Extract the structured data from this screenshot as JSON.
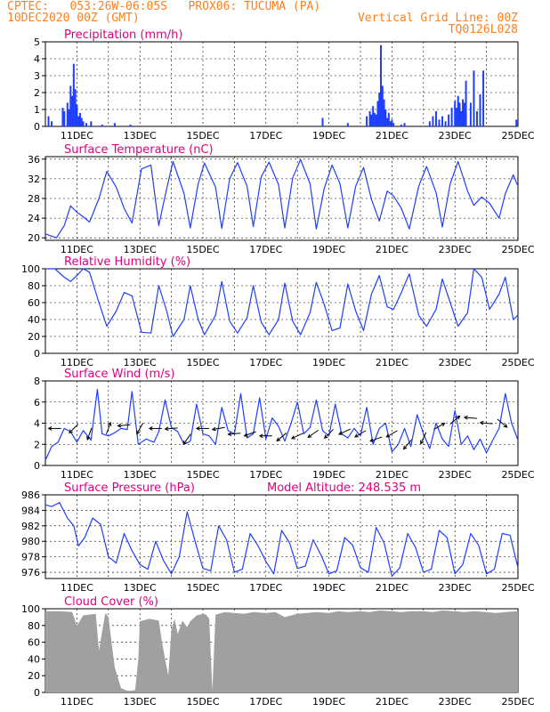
{
  "header": {
    "line1_left": "CPTEC:   053:26W-06:05S   PROX06: TUCUMA (PA)",
    "line2_left": "10DEC2020 00Z (GMT)",
    "line2_right": "Vertical Grid Line: 00Z",
    "line3_right": "TQ0126L028"
  },
  "colors": {
    "header": "#ff7f1f",
    "title": "#e0007f",
    "series": "#1f3fff",
    "cloud": "#a0a0a0"
  },
  "x_axis": {
    "start": "10DEC2020 00Z",
    "end": "25DEC2020 00Z",
    "tick_labels": [
      "11DEC",
      "13DEC",
      "15DEC",
      "17DEC",
      "19DEC",
      "21DEC",
      "23DEC",
      "25DEC"
    ],
    "tick_days": [
      1,
      3,
      5,
      7,
      9,
      11,
      13,
      15
    ]
  },
  "chart_data": [
    {
      "type": "bar",
      "id": "precip",
      "title": "Precipitation (mm/h)",
      "ylim": [
        0,
        5
      ],
      "yticks": [
        0,
        1,
        2,
        3,
        4,
        5
      ],
      "x_unit": "days since 10DEC2020 00Z",
      "x": [
        0.1,
        0.2,
        0.55,
        0.6,
        0.7,
        0.75,
        0.8,
        0.85,
        0.9,
        0.95,
        1.0,
        1.05,
        1.1,
        1.15,
        1.2,
        1.3,
        1.45,
        1.8,
        2.2,
        2.7,
        8.8,
        9.6,
        10.2,
        10.3,
        10.35,
        10.4,
        10.45,
        10.5,
        10.55,
        10.6,
        10.65,
        10.7,
        10.75,
        10.8,
        10.85,
        10.9,
        10.95,
        11.0,
        11.05,
        11.3,
        11.4,
        12.2,
        12.3,
        12.4,
        12.5,
        12.6,
        12.7,
        12.8,
        12.9,
        13.0,
        13.05,
        13.1,
        13.15,
        13.2,
        13.25,
        13.3,
        13.35,
        13.5,
        13.6,
        13.7,
        13.8,
        13.9,
        14.95
      ],
      "values": [
        0.6,
        0.3,
        1.1,
        0.9,
        1.4,
        1.0,
        2.4,
        1.8,
        3.7,
        2.2,
        1.3,
        0.6,
        0.8,
        0.5,
        0.3,
        0.2,
        0.3,
        0.1,
        0.2,
        0.1,
        0.5,
        0.2,
        0.6,
        0.9,
        0.7,
        1.2,
        0.8,
        0.7,
        1.5,
        2.0,
        4.8,
        2.4,
        1.6,
        1.0,
        0.5,
        0.8,
        0.3,
        0.4,
        0.2,
        0.1,
        0.2,
        0.3,
        0.6,
        0.9,
        0.4,
        0.6,
        0.3,
        0.7,
        1.1,
        1.5,
        1.1,
        1.8,
        1.4,
        0.9,
        1.6,
        1.4,
        2.7,
        1.4,
        3.3,
        0.9,
        1.9,
        3.3,
        0.4
      ]
    },
    {
      "type": "line",
      "id": "temp",
      "title": "Surface Temperature (nC)",
      "ylim": [
        19.5,
        36.5
      ],
      "yticks": [
        20,
        24,
        28,
        32,
        36
      ],
      "x_unit": "days since 10DEC2020 00Z",
      "x": [
        0,
        0.35,
        0.6,
        0.8,
        1.0,
        1.2,
        1.4,
        1.7,
        1.95,
        2.25,
        2.5,
        2.75,
        3.05,
        3.35,
        3.6,
        3.85,
        4.05,
        4.4,
        4.6,
        4.85,
        5.05,
        5.4,
        5.6,
        5.85,
        6.1,
        6.4,
        6.6,
        6.85,
        7.1,
        7.4,
        7.6,
        7.85,
        8.1,
        8.4,
        8.6,
        8.85,
        9.1,
        9.35,
        9.6,
        9.85,
        10.1,
        10.35,
        10.6,
        10.85,
        11.05,
        11.3,
        11.55,
        11.85,
        12.1,
        12.4,
        12.6,
        12.85,
        13.1,
        13.4,
        13.6,
        13.85,
        14.1,
        14.4,
        14.6,
        14.85,
        15.0
      ],
      "values": [
        20.8,
        20.0,
        22.5,
        26.5,
        25.2,
        24.3,
        23.2,
        28.0,
        33.5,
        30.3,
        26.0,
        23.0,
        34.0,
        34.8,
        22.5,
        30.0,
        35.5,
        29.0,
        22.0,
        31.0,
        35.2,
        30.3,
        21.9,
        32.0,
        35.3,
        30.5,
        22.3,
        32.4,
        35.4,
        30.8,
        22.0,
        32.2,
        35.9,
        31.0,
        21.8,
        30.0,
        34.8,
        31.0,
        22.0,
        30.5,
        34.3,
        27.8,
        23.4,
        29.5,
        28.5,
        26.0,
        21.8,
        30.5,
        34.5,
        29.2,
        22.2,
        31.0,
        35.5,
        29.5,
        26.6,
        28.3,
        27.0,
        24.0,
        29.0,
        32.8,
        30.5
      ]
    },
    {
      "type": "line",
      "id": "rh",
      "title": "Relative Humidity (%)",
      "ylim": [
        0,
        100
      ],
      "yticks": [
        0,
        20,
        40,
        60,
        80,
        100
      ],
      "x_unit": "days since 10DEC2020 00Z",
      "x": [
        0,
        0.3,
        0.6,
        0.8,
        1.0,
        1.2,
        1.4,
        1.7,
        1.95,
        2.25,
        2.5,
        2.75,
        3.05,
        3.35,
        3.6,
        3.85,
        4.05,
        4.4,
        4.6,
        4.85,
        5.05,
        5.4,
        5.6,
        5.85,
        6.1,
        6.4,
        6.6,
        6.85,
        7.1,
        7.4,
        7.6,
        7.85,
        8.1,
        8.4,
        8.6,
        8.85,
        9.1,
        9.35,
        9.6,
        9.85,
        10.1,
        10.35,
        10.6,
        10.85,
        11.05,
        11.3,
        11.55,
        11.85,
        12.1,
        12.4,
        12.6,
        12.85,
        13.1,
        13.4,
        13.6,
        13.85,
        14.1,
        14.4,
        14.6,
        14.85,
        15.0
      ],
      "values": [
        100,
        100,
        90,
        85,
        92,
        100,
        96,
        60,
        32,
        50,
        72,
        68,
        25,
        24,
        80,
        50,
        20,
        40,
        80,
        40,
        22,
        45,
        85,
        38,
        24,
        42,
        80,
        37,
        22,
        40,
        83,
        38,
        22,
        48,
        84,
        58,
        27,
        30,
        82,
        50,
        27,
        70,
        92,
        55,
        52,
        72,
        94,
        45,
        32,
        52,
        88,
        60,
        32,
        48,
        100,
        90,
        52,
        70,
        90,
        40,
        45
      ]
    },
    {
      "type": "line",
      "id": "wind",
      "title": "Surface Wind (m/s)",
      "ylim": [
        0,
        8
      ],
      "yticks": [
        0,
        2,
        4,
        6,
        8
      ],
      "x_unit": "days since 10DEC2020 00Z",
      "x": [
        0,
        0.2,
        0.4,
        0.6,
        0.8,
        1.0,
        1.2,
        1.45,
        1.65,
        1.8,
        2.0,
        2.2,
        2.4,
        2.6,
        2.75,
        2.95,
        3.2,
        3.45,
        3.6,
        3.8,
        4.0,
        4.2,
        4.4,
        4.6,
        4.8,
        5.0,
        5.2,
        5.4,
        5.6,
        5.8,
        6.0,
        6.2,
        6.4,
        6.6,
        6.8,
        7.0,
        7.2,
        7.4,
        7.6,
        7.8,
        8.0,
        8.2,
        8.4,
        8.6,
        8.8,
        9.0,
        9.2,
        9.4,
        9.6,
        9.8,
        10.0,
        10.2,
        10.4,
        10.6,
        10.8,
        11.0,
        11.2,
        11.4,
        11.6,
        11.8,
        12.0,
        12.2,
        12.4,
        12.6,
        12.8,
        13.0,
        13.2,
        13.4,
        13.6,
        13.8,
        14.0,
        14.2,
        14.4,
        14.6,
        14.8,
        15.0
      ],
      "values": [
        0.5,
        1.8,
        2.2,
        3.5,
        3.2,
        2.2,
        3.3,
        2.4,
        7.2,
        3.0,
        2.8,
        3.1,
        3.5,
        3.4,
        7.0,
        2.0,
        2.5,
        2.2,
        3.2,
        6.2,
        3.6,
        3.2,
        2.0,
        2.3,
        5.8,
        3.0,
        2.8,
        2.0,
        5.5,
        3.3,
        3.0,
        6.8,
        2.6,
        3.0,
        6.4,
        2.5,
        4.5,
        3.7,
        2.3,
        4.0,
        6.0,
        3.0,
        3.6,
        6.2,
        3.3,
        2.8,
        5.8,
        3.0,
        2.6,
        3.5,
        2.8,
        5.5,
        2.0,
        3.5,
        4.0,
        1.3,
        2.0,
        3.5,
        1.8,
        4.8,
        3.0,
        1.6,
        4.0,
        2.5,
        1.8,
        5.2,
        2.0,
        2.8,
        1.5,
        2.5,
        1.2,
        2.4,
        3.5,
        6.8,
        4.0,
        2.4
      ]
    },
    {
      "type": "line",
      "id": "press",
      "title": "Surface Pressure (hPa)",
      "annotation": "Model Altitude: 248.535 m",
      "ylim": [
        975.2,
        986
      ],
      "yticks": [
        976,
        978,
        980,
        982,
        984,
        986
      ],
      "x_unit": "days since 10DEC2020 00Z",
      "x": [
        0,
        0.2,
        0.45,
        0.7,
        0.9,
        1.05,
        1.25,
        1.5,
        1.75,
        2.0,
        2.25,
        2.5,
        2.75,
        3.0,
        3.25,
        3.5,
        3.75,
        4.0,
        4.25,
        4.5,
        4.75,
        5.0,
        5.25,
        5.5,
        5.75,
        6.0,
        6.25,
        6.5,
        6.75,
        7.0,
        7.25,
        7.5,
        7.75,
        8.0,
        8.25,
        8.5,
        8.75,
        9.0,
        9.25,
        9.5,
        9.75,
        10.0,
        10.25,
        10.5,
        10.75,
        11.0,
        11.25,
        11.5,
        11.75,
        12.0,
        12.25,
        12.5,
        12.75,
        13.0,
        13.25,
        13.5,
        13.75,
        14.0,
        14.25,
        14.5,
        14.75,
        15.0
      ],
      "values": [
        984.7,
        984.5,
        985.0,
        983.0,
        982.0,
        979.4,
        980.5,
        983.0,
        982.2,
        978.0,
        977.2,
        981.0,
        978.8,
        977.0,
        976.4,
        980.0,
        977.5,
        975.8,
        978.0,
        983.8,
        980.0,
        976.5,
        976.2,
        982.0,
        980.2,
        976.0,
        976.4,
        981.0,
        979.4,
        977.4,
        975.8,
        981.4,
        979.8,
        976.5,
        976.8,
        980.2,
        978.2,
        975.8,
        976.2,
        980.5,
        979.5,
        976.6,
        976.0,
        981.8,
        979.8,
        975.5,
        976.6,
        981.0,
        979.2,
        976.0,
        976.4,
        981.4,
        980.5,
        975.8,
        977.0,
        981.0,
        979.5,
        975.8,
        976.4,
        981.0,
        980.8,
        976.6
      ]
    },
    {
      "type": "area",
      "id": "cloud",
      "title": "Cloud Cover (%)",
      "ylim": [
        0,
        100
      ],
      "yticks": [
        0,
        20,
        40,
        60,
        80,
        100
      ],
      "x_unit": "days since 10DEC2020 00Z",
      "x": [
        0,
        0.5,
        0.85,
        1.0,
        1.2,
        1.6,
        1.7,
        1.9,
        2.0,
        2.2,
        2.4,
        2.6,
        2.75,
        2.85,
        2.95,
        3.0,
        3.3,
        3.6,
        3.7,
        3.8,
        3.9,
        4.0,
        4.1,
        4.2,
        4.35,
        4.5,
        4.6,
        4.8,
        5.0,
        5.1,
        5.2,
        5.3,
        5.4,
        5.7,
        6.0,
        6.3,
        6.6,
        7.0,
        7.3,
        7.6,
        8.0,
        8.3,
        8.6,
        9.0,
        9.3,
        9.6,
        10.0,
        10.3,
        10.6,
        11.0,
        11.3,
        11.6,
        12.0,
        12.3,
        12.6,
        13.0,
        13.3,
        13.6,
        14.0,
        14.3,
        14.6,
        15.0
      ],
      "values": [
        97,
        97,
        96,
        80,
        92,
        94,
        50,
        95,
        90,
        30,
        5,
        2,
        2,
        3,
        40,
        85,
        88,
        86,
        60,
        40,
        20,
        75,
        88,
        70,
        86,
        78,
        85,
        92,
        94,
        93,
        88,
        2,
        93,
        96,
        95,
        94,
        96,
        95,
        96,
        90,
        94,
        95,
        96,
        95,
        97,
        96,
        97,
        96,
        98,
        97,
        96,
        97,
        97,
        96,
        98,
        97,
        96,
        97,
        96,
        95,
        96,
        97
      ]
    }
  ],
  "wind_arrows": {
    "x": [
      0.3,
      0.9,
      1.4,
      2.0,
      2.5,
      3.0,
      3.5,
      4.0,
      4.5,
      5.0,
      5.5,
      6.0,
      6.5,
      7.0,
      7.5,
      8.0,
      8.5,
      9.0,
      9.5,
      10.0,
      10.5,
      11.0,
      11.5,
      12.0,
      12.5,
      13.0,
      13.5,
      14.0,
      14.5
    ],
    "y": [
      3.5,
      3.5,
      3.0,
      3.5,
      3.8,
      3.5,
      3.5,
      3.5,
      2.5,
      3.5,
      3.5,
      3.0,
      3.0,
      2.8,
      2.7,
      2.8,
      3.0,
      3.0,
      3.2,
      3.0,
      2.5,
      3.0,
      2.0,
      2.6,
      3.7,
      4.3,
      4.5,
      4.0,
      4.0
    ],
    "dir_deg": [
      180,
      225,
      250,
      70,
      185,
      240,
      180,
      185,
      235,
      180,
      190,
      185,
      200,
      180,
      220,
      205,
      215,
      225,
      205,
      210,
      200,
      210,
      230,
      245,
      30,
      40,
      175,
      175,
      320
    ]
  }
}
